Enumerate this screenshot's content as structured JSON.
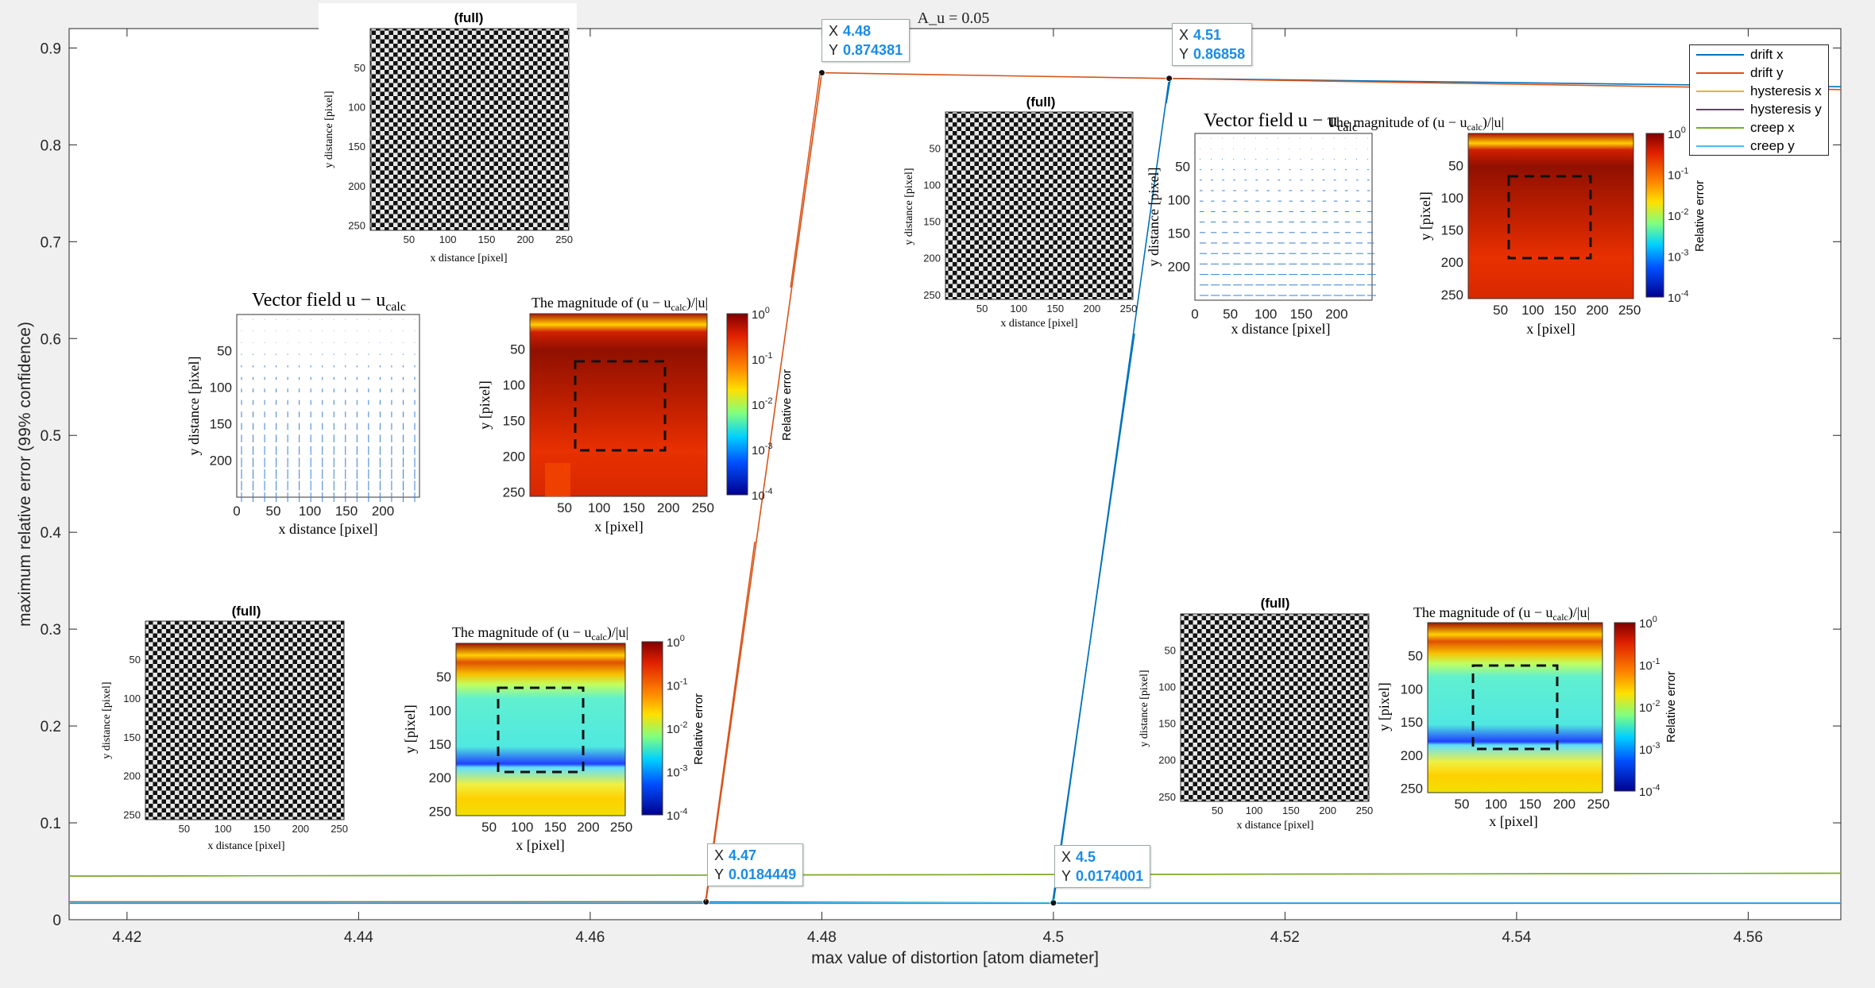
{
  "chart_data": {
    "type": "line",
    "title": "A_u = 0.05",
    "xlabel": "max value of distortion [atom diameter]",
    "ylabel": "maximum relative error (99% confidence)",
    "xlim": [
      4.415,
      4.568
    ],
    "ylim": [
      0,
      0.92
    ],
    "xticks": [
      "4.42",
      "4.44",
      "4.46",
      "4.48",
      "4.5",
      "4.52",
      "4.54",
      "4.56"
    ],
    "yticks": [
      "0",
      "0.1",
      "0.2",
      "0.3",
      "0.4",
      "0.5",
      "0.6",
      "0.7",
      "0.8",
      "0.9"
    ],
    "grid": false,
    "legend_position": "top-right",
    "series": [
      {
        "name": "drift x",
        "color": "#0072BD",
        "x": [
          4.415,
          4.47,
          4.5,
          4.51,
          4.568
        ],
        "y": [
          0.018,
          0.0184449,
          0.0174001,
          0.86858,
          0.86
        ]
      },
      {
        "name": "drift y",
        "color": "#D95319",
        "x": [
          4.415,
          4.47,
          4.48,
          4.568
        ],
        "y": [
          0.0185,
          0.0184449,
          0.874381,
          0.857
        ]
      },
      {
        "name": "hysteresis x",
        "color": "#EDB120",
        "x": [
          4.415,
          4.568
        ],
        "y": [
          0.045,
          0.048
        ]
      },
      {
        "name": "hysteresis y",
        "color": "#7E2F8E",
        "x": [
          4.415,
          4.568
        ],
        "y": [
          0.017,
          0.017
        ]
      },
      {
        "name": "creep x",
        "color": "#77AC30",
        "x": [
          4.415,
          4.568
        ],
        "y": [
          0.045,
          0.048
        ]
      },
      {
        "name": "creep y",
        "color": "#4DBEEE",
        "x": [
          4.415,
          4.568
        ],
        "y": [
          0.0175,
          0.0175
        ]
      }
    ]
  },
  "datatips": [
    {
      "x_label": "X",
      "x": "4.48",
      "y_label": "Y",
      "y": "0.874381"
    },
    {
      "x_label": "X",
      "x": "4.51",
      "y_label": "Y",
      "y": "0.86858"
    },
    {
      "x_label": "X",
      "x": "4.47",
      "y_label": "Y",
      "y": "0.0184449"
    },
    {
      "x_label": "X",
      "x": "4.5",
      "y_label": "Y",
      "y": "0.0174001"
    }
  ],
  "insets": {
    "full_title": "(full)",
    "x_distance_label": "x distance [pixel]",
    "y_distance_label": "y distance [pixel]",
    "x_label": "x [pixel]",
    "y_label": "y [pixel]",
    "vector_title": "Vector field u − u",
    "vector_title_sub": "calc",
    "magnitude_title": "The magnitude of (u − u",
    "magnitude_title_sub": "calc",
    "magnitude_title_end": ")/|u|",
    "colorbar_label": "Relative error",
    "colorbar_ticks": [
      "10^0",
      "10^-1",
      "10^-2",
      "10^-3",
      "10^-4"
    ],
    "img_ticks": [
      "50",
      "100",
      "150",
      "200",
      "250"
    ],
    "vec_x_ticks": [
      "0",
      "50",
      "100",
      "150",
      "200"
    ],
    "vec_y_ticks": [
      "50",
      "100",
      "150",
      "200"
    ]
  }
}
